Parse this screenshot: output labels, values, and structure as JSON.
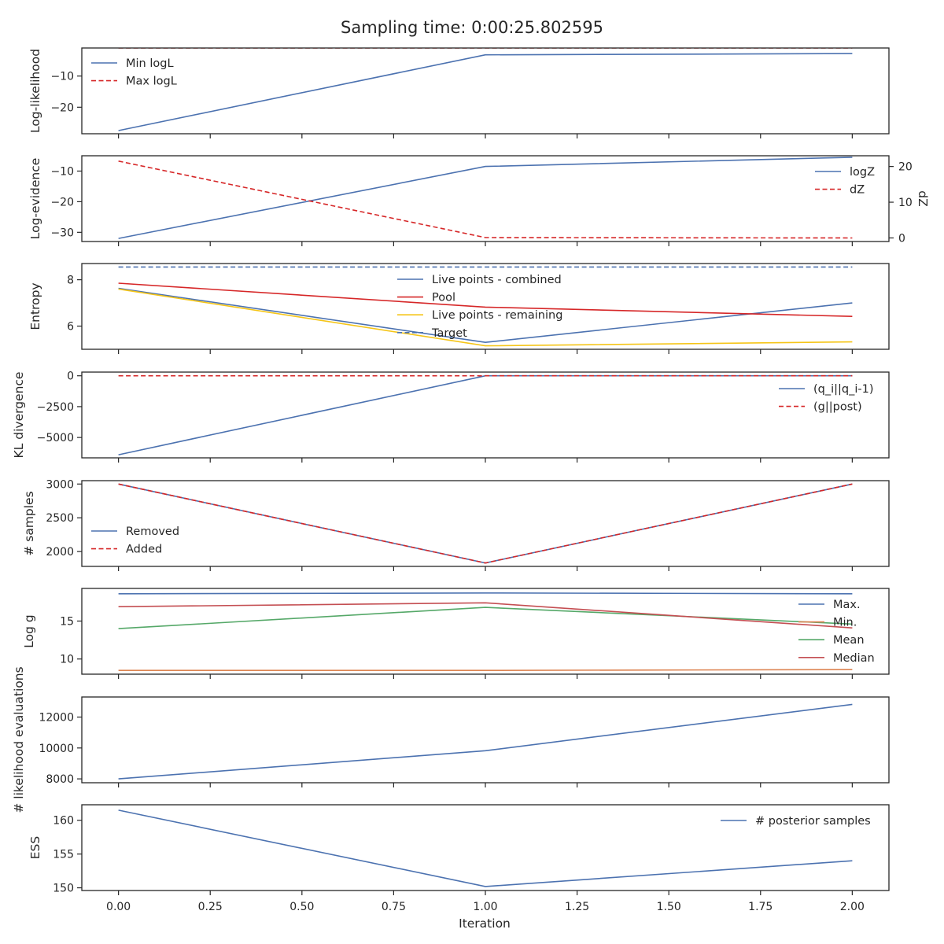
{
  "chart_data": {
    "type": "line",
    "title": "Sampling time: 0:00:25.802595",
    "xlabel": "Iteration",
    "xlim": [
      -0.1,
      2.1
    ],
    "xticks": [
      0.0,
      0.25,
      0.5,
      0.75,
      1.0,
      1.25,
      1.5,
      1.75,
      2.0
    ],
    "xtick_labels": [
      "0.00",
      "0.25",
      "0.50",
      "0.75",
      "1.00",
      "1.25",
      "1.50",
      "1.75",
      "2.00"
    ],
    "x": [
      0,
      1,
      2
    ],
    "colors": {
      "blue": "#4c72b0",
      "red": "#d62728",
      "red_line": "#c44e52",
      "yellow": "#f5c518",
      "green": "#55a868",
      "orange": "#dd8452",
      "text": "#262626"
    },
    "panels": [
      {
        "ylabel": "Log-likelihood",
        "ylim": [
          -28.5,
          -1
        ],
        "yticks": [
          -10,
          -20
        ],
        "ytick_labels": [
          "−10",
          "−20"
        ],
        "legend": "upper-left",
        "series": [
          {
            "name": "Min logL",
            "values": [
              -27.5,
              -3.2,
              -2.8
            ],
            "color": "#4c72b0",
            "dash": false
          },
          {
            "name": "Max logL",
            "values": [
              -1.0,
              -1.0,
              -1.0
            ],
            "color": "#d62728",
            "dash": true
          }
        ]
      },
      {
        "ylabel": "Log-evidence",
        "ylim": [
          -33,
          -5
        ],
        "yticks": [
          -10,
          -20,
          -30
        ],
        "ytick_labels": [
          "−10",
          "−20",
          "−30"
        ],
        "secondary": {
          "ylabel": "dZ",
          "ylim": [
            -1,
            23
          ],
          "yticks": [
            20,
            10,
            0
          ],
          "ytick_labels": [
            "20",
            "10",
            "0"
          ]
        },
        "legend": "upper-right",
        "series": [
          {
            "name": "logZ",
            "values": [
              -32,
              -8.5,
              -5.5
            ],
            "color": "#4c72b0",
            "dash": false
          },
          {
            "name": "dZ",
            "values": [
              21.5,
              0.1,
              0.0
            ],
            "color": "#d62728",
            "dash": true,
            "axis": "secondary"
          }
        ]
      },
      {
        "ylabel": "Entropy",
        "ylim": [
          5.0,
          8.7
        ],
        "yticks": [
          8,
          6
        ],
        "ytick_labels": [
          "8",
          "6"
        ],
        "legend": "upper-center",
        "series": [
          {
            "name": "Live points - combined",
            "values": [
              7.63,
              5.3,
              7.0
            ],
            "color": "#4c72b0",
            "dash": false
          },
          {
            "name": "Pool",
            "values": [
              7.85,
              6.82,
              6.42
            ],
            "color": "#d62728",
            "dash": false
          },
          {
            "name": "Live points - remaining",
            "values": [
              7.6,
              5.15,
              5.32
            ],
            "color": "#f5c518",
            "dash": false
          },
          {
            "name": "Target",
            "values": [
              8.55,
              8.55,
              8.55
            ],
            "color": "#4c72b0",
            "dash": true
          }
        ]
      },
      {
        "ylabel": "KL divergence",
        "ylim": [
          -6650,
          300
        ],
        "yticks": [
          0,
          -2500,
          -5000
        ],
        "ytick_labels": [
          "0",
          "−2500",
          "−5000"
        ],
        "legend": "right",
        "series": [
          {
            "name": "(q_i||q_i-1)",
            "values": [
              -6400,
              0,
              0
            ],
            "color": "#4c72b0",
            "dash": false
          },
          {
            "name": "(g||post)",
            "values": [
              0,
              0,
              0
            ],
            "color": "#d62728",
            "dash": true
          }
        ]
      },
      {
        "ylabel": "# samples",
        "ylim": [
          1780,
          3050
        ],
        "yticks": [
          3000,
          2500,
          2000
        ],
        "ytick_labels": [
          "3000",
          "2500",
          "2000"
        ],
        "legend": "lower-left",
        "series": [
          {
            "name": "Removed",
            "values": [
              3000,
              1830,
              3000
            ],
            "color": "#4c72b0",
            "dash": false
          },
          {
            "name": "Added",
            "values": [
              3000,
              1830,
              3000
            ],
            "color": "#d62728",
            "dash": true
          }
        ]
      },
      {
        "ylabel": "Log g",
        "ylim": [
          8.0,
          19.3
        ],
        "yticks": [
          15,
          10
        ],
        "ytick_labels": [
          "15",
          "10"
        ],
        "legend": "lower-right",
        "series": [
          {
            "name": "Max.",
            "values": [
              18.6,
              18.7,
              18.6
            ],
            "color": "#4c72b0",
            "dash": false
          },
          {
            "name": "Min.",
            "values": [
              8.5,
              8.5,
              8.6
            ],
            "color": "#dd8452",
            "dash": false
          },
          {
            "name": "Mean",
            "values": [
              14.0,
              16.8,
              14.6
            ],
            "color": "#55a868",
            "dash": false
          },
          {
            "name": "Median",
            "values": [
              16.9,
              17.4,
              14.1
            ],
            "color": "#c44e52",
            "dash": false
          }
        ]
      },
      {
        "ylabel": "# likelihood evaluations",
        "ylim": [
          7750,
          13300
        ],
        "yticks": [
          12000,
          10000,
          8000
        ],
        "ytick_labels": [
          "12000",
          "10000",
          "8000"
        ],
        "legend": "none",
        "series": [
          {
            "name": "",
            "values": [
              8000,
              9820,
              12820
            ],
            "color": "#4c72b0",
            "dash": false
          }
        ]
      },
      {
        "ylabel": "ESS",
        "ylim": [
          149.6,
          162.3
        ],
        "yticks": [
          160,
          155,
          150
        ],
        "ytick_labels": [
          "160",
          "155",
          "150"
        ],
        "legend": "upper-right",
        "series": [
          {
            "name": "# posterior samples",
            "values": [
              161.5,
              150.2,
              154.0
            ],
            "color": "#4c72b0",
            "dash": false
          }
        ]
      }
    ]
  }
}
